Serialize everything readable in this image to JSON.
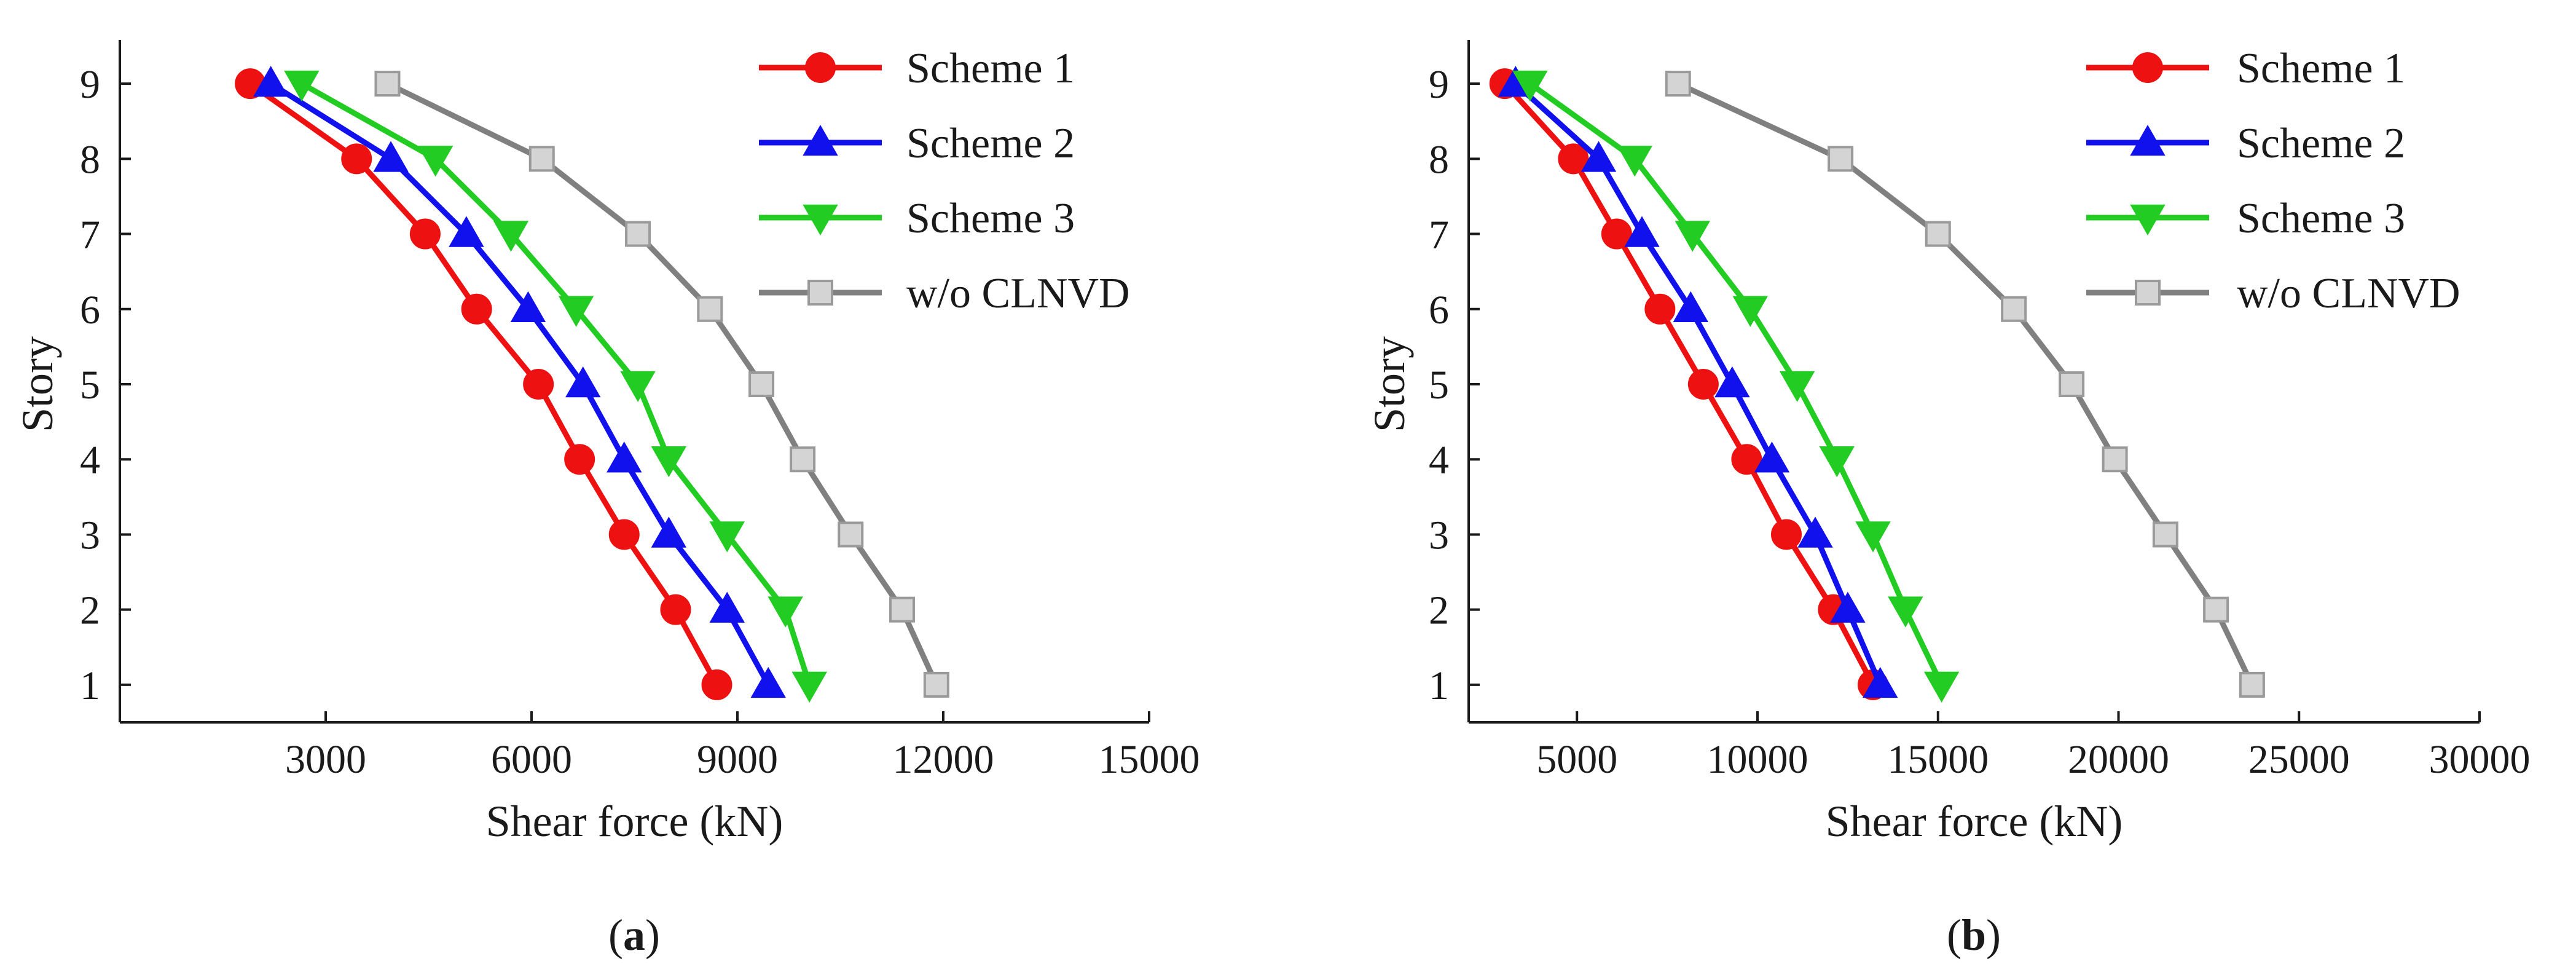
{
  "chart_data": [
    {
      "type": "line",
      "panel_label": "(a)",
      "xlabel": "Shear force (kN)",
      "ylabel": "Story",
      "xlim": [
        0,
        15000
      ],
      "ylim": [
        0.5,
        9.5
      ],
      "xticks": [
        3000,
        6000,
        9000,
        12000,
        15000
      ],
      "yticks": [
        1,
        2,
        3,
        4,
        5,
        6,
        7,
        8,
        9
      ],
      "x_tick_labels": [
        "3000",
        "6000",
        "9000",
        "12000",
        "15000"
      ],
      "y_tick_labels": [
        "1",
        "2",
        "3",
        "4",
        "5",
        "6",
        "7",
        "8",
        "9"
      ],
      "legend_position": "top-right",
      "series": [
        {
          "name": "Scheme 1",
          "color": "#ee1111",
          "marker": "circle",
          "stories": [
            1,
            2,
            3,
            4,
            5,
            6,
            7,
            8,
            9
          ],
          "values": [
            8700,
            8100,
            7350,
            6700,
            6100,
            5200,
            4450,
            3450,
            1900
          ]
        },
        {
          "name": "Scheme 2",
          "color": "#1111ee",
          "marker": "triangle-up",
          "stories": [
            1,
            2,
            3,
            4,
            5,
            6,
            7,
            8,
            9
          ],
          "values": [
            9450,
            8850,
            8000,
            7350,
            6750,
            5950,
            5050,
            3950,
            2200
          ]
        },
        {
          "name": "Scheme 3",
          "color": "#22cc22",
          "marker": "triangle-down",
          "stories": [
            1,
            2,
            3,
            4,
            5,
            6,
            7,
            8,
            9
          ],
          "values": [
            10050,
            9700,
            8850,
            8000,
            7550,
            6650,
            5700,
            4600,
            2650
          ]
        },
        {
          "name": "w/o CLNVD",
          "color": "#808080",
          "marker": "square",
          "stories": [
            1,
            2,
            3,
            4,
            5,
            6,
            7,
            8,
            9
          ],
          "values": [
            11900,
            11400,
            10650,
            9950,
            9350,
            8600,
            7550,
            6150,
            3900
          ]
        }
      ]
    },
    {
      "type": "line",
      "panel_label": "(b)",
      "xlabel": "Shear force (kN)",
      "ylabel": "Story",
      "xlim": [
        2000,
        30000
      ],
      "ylim": [
        0.5,
        9.5
      ],
      "xticks": [
        5000,
        10000,
        15000,
        20000,
        25000,
        30000
      ],
      "yticks": [
        1,
        2,
        3,
        4,
        5,
        6,
        7,
        8,
        9
      ],
      "x_tick_labels": [
        "5000",
        "10000",
        "15000",
        "20000",
        "25000",
        "30000"
      ],
      "y_tick_labels": [
        "1",
        "2",
        "3",
        "4",
        "5",
        "6",
        "7",
        "8",
        "9"
      ],
      "legend_position": "top-right",
      "series": [
        {
          "name": "Scheme 1",
          "color": "#ee1111",
          "marker": "circle",
          "stories": [
            1,
            2,
            3,
            4,
            5,
            6,
            7,
            8,
            9
          ],
          "values": [
            13200,
            12100,
            10800,
            9700,
            8500,
            7300,
            6100,
            4900,
            3000
          ]
        },
        {
          "name": "Scheme 2",
          "color": "#1111ee",
          "marker": "triangle-up",
          "stories": [
            1,
            2,
            3,
            4,
            5,
            6,
            7,
            8,
            9
          ],
          "values": [
            13400,
            12500,
            11600,
            10400,
            9300,
            8150,
            6800,
            5600,
            3300
          ]
        },
        {
          "name": "Scheme 3",
          "color": "#22cc22",
          "marker": "triangle-down",
          "stories": [
            1,
            2,
            3,
            4,
            5,
            6,
            7,
            8,
            9
          ],
          "values": [
            15100,
            14100,
            13200,
            12200,
            11100,
            9800,
            8200,
            6600,
            3700
          ]
        },
        {
          "name": "w/o CLNVD",
          "color": "#808080",
          "marker": "square",
          "stories": [
            1,
            2,
            3,
            4,
            5,
            6,
            7,
            8,
            9
          ],
          "values": [
            23700,
            22700,
            21300,
            19900,
            18700,
            17100,
            15000,
            12300,
            7800
          ]
        }
      ]
    }
  ]
}
